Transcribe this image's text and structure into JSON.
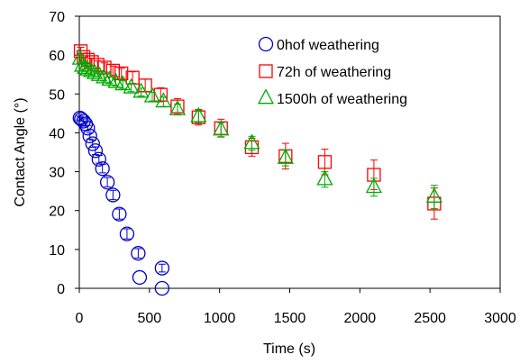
{
  "chart_data": {
    "type": "scatter",
    "xlabel": "Time (s)",
    "ylabel": "Contact Angle (°)",
    "xlim": [
      0,
      3000
    ],
    "ylim": [
      0,
      70
    ],
    "x_ticks": [
      0,
      500,
      1000,
      1500,
      2000,
      2500,
      3000
    ],
    "y_ticks": [
      0,
      10,
      20,
      30,
      40,
      50,
      60,
      70
    ],
    "grid": false,
    "legend_position": "top-right",
    "series": [
      {
        "name": "0hof weathering",
        "marker": "circle",
        "color": "#0000cc",
        "x": [
          5,
          15,
          30,
          45,
          60,
          75,
          95,
          115,
          140,
          165,
          200,
          240,
          285,
          340,
          420,
          590
        ],
        "y": [
          43.8,
          43.5,
          43.0,
          42.3,
          41.2,
          39.2,
          37.2,
          35.4,
          33.2,
          30.8,
          27.3,
          24.0,
          19.1,
          14.0,
          9.0,
          5.2
        ],
        "err": [
          0.5,
          0.5,
          0.6,
          0.6,
          0.7,
          0.8,
          0.9,
          1.0,
          1.0,
          1.1,
          1.2,
          1.2,
          1.3,
          1.3,
          1.2,
          1.0
        ],
        "tail_x": [
          430,
          590
        ],
        "tail_y": [
          2.8,
          0
        ]
      },
      {
        "name": "72h of weathering",
        "marker": "square",
        "color": "#ff0000",
        "x": [
          10,
          30,
          60,
          90,
          130,
          180,
          240,
          300,
          380,
          470,
          580,
          700,
          850,
          1010,
          1230,
          1470,
          1750,
          2100,
          2530
        ],
        "y": [
          61.0,
          59.5,
          58.8,
          58.2,
          57.5,
          56.8,
          56.0,
          55.3,
          54.2,
          52.2,
          49.8,
          46.8,
          44.0,
          41.2,
          36.3,
          34.0,
          32.5,
          29.2,
          21.8
        ],
        "err": [
          1.0,
          1.0,
          1.0,
          1.0,
          1.0,
          1.2,
          1.2,
          1.3,
          1.5,
          1.6,
          1.8,
          2.0,
          2.0,
          2.3,
          2.3,
          3.3,
          3.3,
          3.8,
          4.0
        ]
      },
      {
        "name": "1500h of weathering",
        "marker": "triangle",
        "color": "#00aa00",
        "x": [
          5,
          20,
          40,
          60,
          85,
          110,
          140,
          175,
          215,
          260,
          310,
          370,
          440,
          520,
          600,
          700,
          850,
          1010,
          1230,
          1470,
          1750,
          2100,
          2530
        ],
        "y": [
          59.0,
          57.2,
          56.6,
          56.2,
          55.8,
          55.3,
          54.8,
          54.2,
          53.6,
          53.0,
          52.4,
          51.6,
          50.5,
          49.3,
          48.0,
          46.0,
          44.2,
          40.8,
          37.3,
          33.5,
          28.0,
          26.0,
          23.5
        ],
        "err": [
          1.0,
          1.0,
          0.8,
          0.8,
          0.8,
          0.8,
          0.8,
          0.9,
          0.9,
          0.9,
          1.0,
          1.0,
          1.0,
          1.1,
          1.2,
          1.4,
          1.6,
          1.8,
          1.8,
          2.0,
          2.0,
          2.3,
          3.0
        ]
      }
    ]
  }
}
